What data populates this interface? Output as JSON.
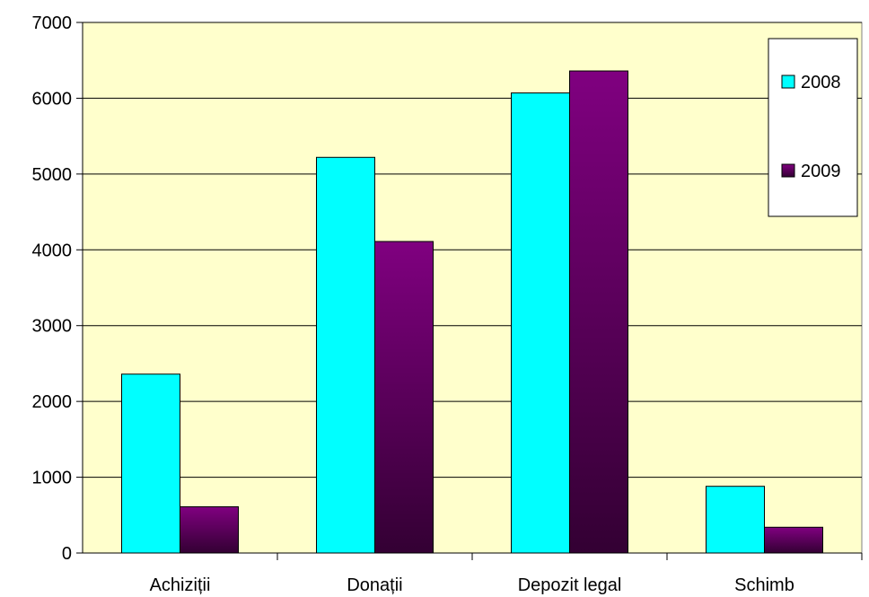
{
  "chart_data": {
    "type": "bar",
    "categories": [
      "Achiziții",
      "Donații",
      "Depozit legal",
      "Schimb"
    ],
    "series": [
      {
        "name": "2008",
        "values": [
          2360,
          5220,
          6070,
          880
        ]
      },
      {
        "name": "2009",
        "values": [
          610,
          4110,
          6360,
          340
        ]
      }
    ],
    "ylim": [
      0,
      7000
    ],
    "yticks": [
      "0",
      "1000",
      "2000",
      "3000",
      "4000",
      "5000",
      "6000",
      "7000"
    ],
    "grid": true,
    "legend": "top-right",
    "colors": {
      "plot_background": "#FFFFCC",
      "series_2008": "#00FFFF",
      "series_2009_top": "#800080",
      "series_2009_bottom": "#330033"
    }
  }
}
